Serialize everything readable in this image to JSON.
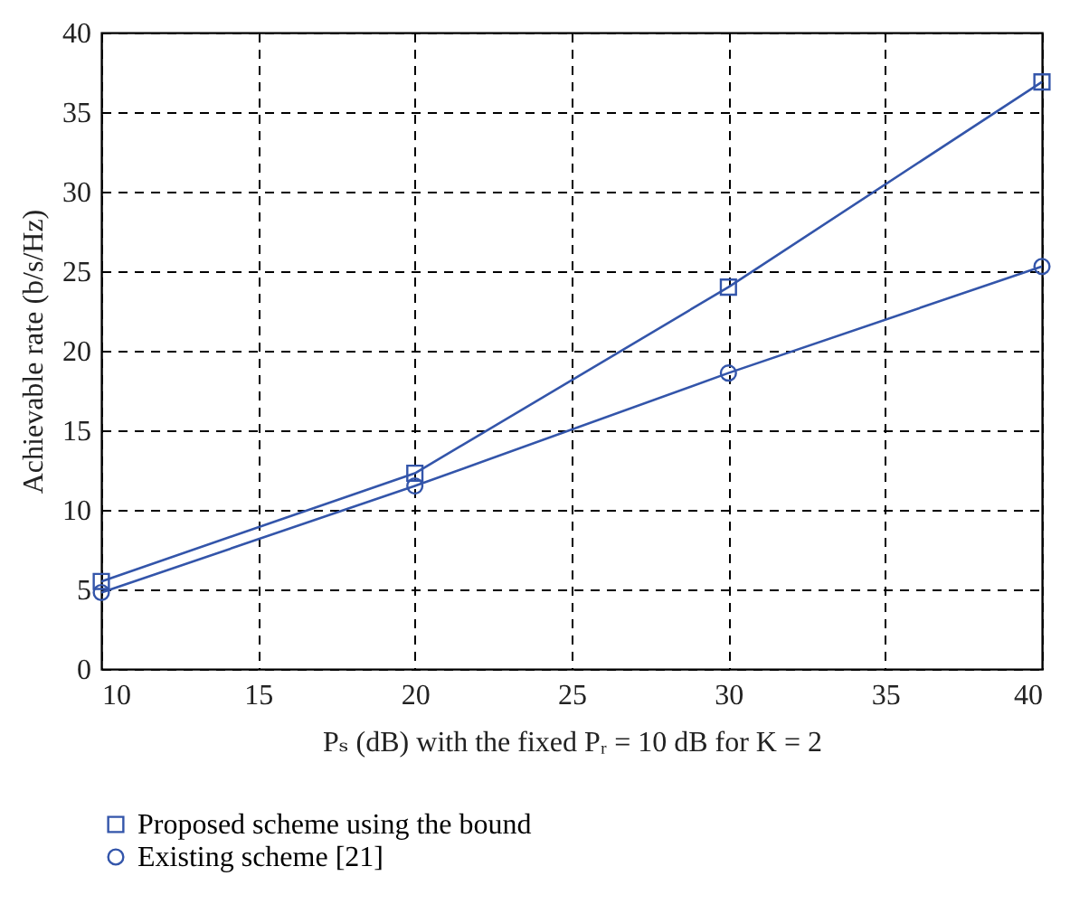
{
  "chart_data": {
    "type": "line",
    "xlabel": "Pₛ (dB) with the fixed Pᵣ = 10 dB for K = 2",
    "ylabel": "Achievable rate (b/s/Hz)",
    "x": [
      10,
      20,
      30,
      40
    ],
    "series": [
      {
        "name": "Proposed scheme using the bound",
        "color": "#3355aa",
        "marker": "square",
        "values": [
          5.5,
          12.3,
          24,
          36.9
        ]
      },
      {
        "name": "Existing scheme [21]",
        "color": "#3355aa",
        "marker": "circle",
        "values": [
          4.8,
          11.5,
          18.6,
          25.3
        ]
      }
    ],
    "xlim": [
      10,
      40
    ],
    "xticks": [
      10,
      15,
      20,
      25,
      30,
      35,
      40
    ],
    "ylim": [
      0,
      40
    ],
    "yticks": [
      0,
      5,
      10,
      15,
      20,
      25,
      30,
      35,
      40
    ],
    "grid": true,
    "legend": "bottom",
    "line_style": "solid"
  }
}
